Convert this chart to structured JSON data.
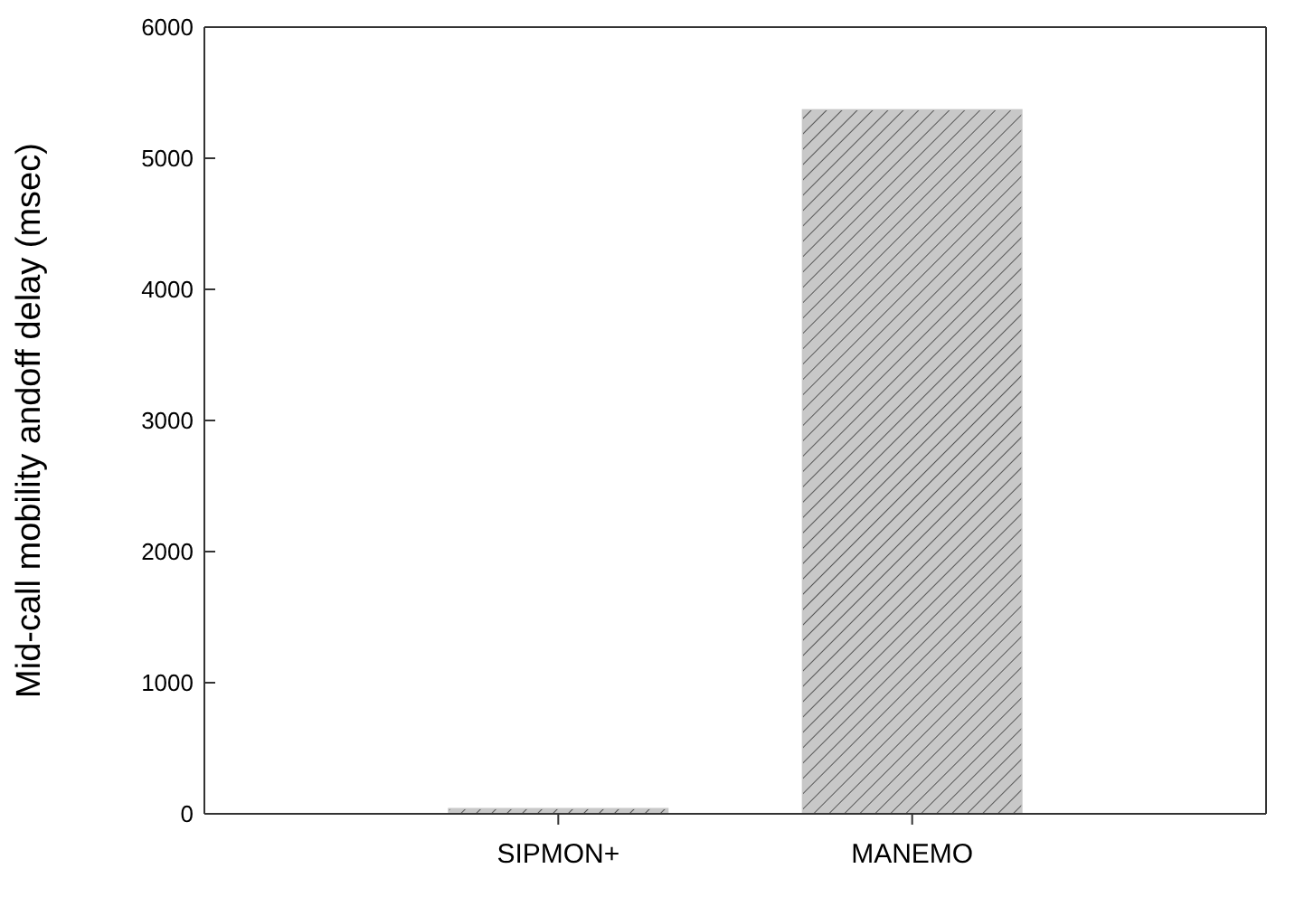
{
  "chart_data": {
    "type": "bar",
    "ylabel": "Mid-call mobility andoff delay (msec)",
    "categories": [
      "SIPMON+",
      "MANEMO"
    ],
    "values": [
      40,
      5370
    ],
    "color": "#c8c8c8",
    "ylim": [
      0,
      6000
    ],
    "yticks": [
      0,
      1000,
      2000,
      3000,
      4000,
      5000,
      6000
    ]
  }
}
